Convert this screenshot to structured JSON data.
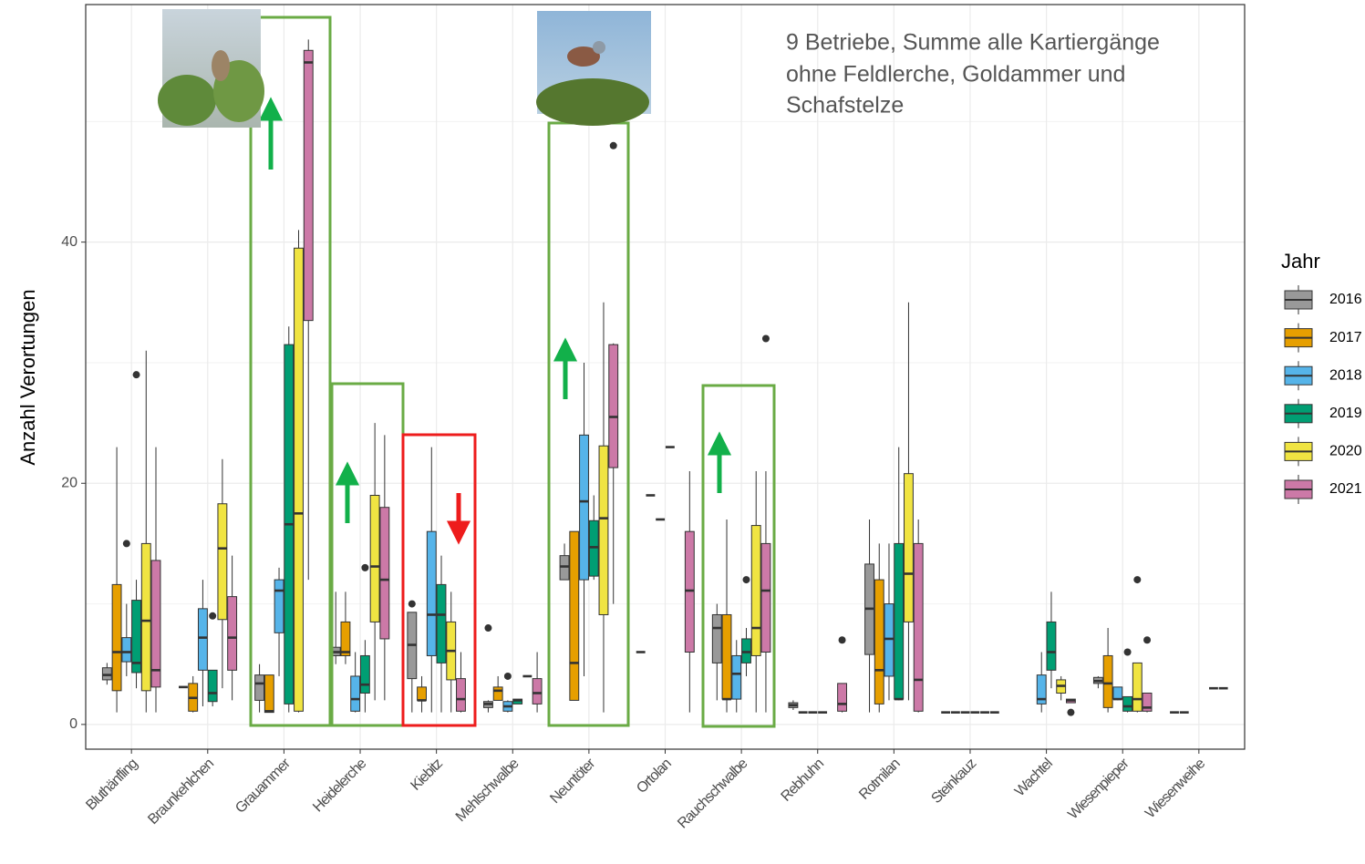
{
  "chart_data": {
    "type": "box",
    "y_label": "Anzahl Verortungen",
    "annotation": [
      "9 Betriebe, Summe alle Kartiergänge",
      "ohne Feldlerche, Goldammer und",
      "Schafstelze"
    ],
    "legend_title": "Jahr",
    "categories": [
      "Bluthänfling",
      "Braunkehlchen",
      "Grauammer",
      "Heidelerche",
      "Kiebitz",
      "Mehlschwalbe",
      "Neuntöter",
      "Ortolan",
      "Rauchschwalbe",
      "Rebhuhn",
      "Rotmilan",
      "Steinkauz",
      "Wachtel",
      "Wiesenpieper",
      "Wiesenweihe"
    ],
    "ylim": [
      -2.05,
      59.7
    ],
    "yticks": [
      0,
      20,
      40
    ],
    "minor_grid": [
      10,
      30,
      50
    ],
    "grid": true,
    "series": [
      {
        "name": "2016",
        "color": "#999999",
        "values": [
          {
            "min": 3.3,
            "q1": 3.7,
            "median": 4.1,
            "q3": 4.7,
            "max": 5.1,
            "outliers": []
          },
          {
            "min": 3.1,
            "q1": 3.1,
            "median": 3.1,
            "q3": 3.1,
            "max": 3.1,
            "outliers": []
          },
          {
            "min": 1,
            "q1": 2,
            "median": 3.4,
            "q3": 4.1,
            "max": 5,
            "outliers": []
          },
          {
            "min": 5,
            "q1": 5.7,
            "median": 6,
            "q3": 6.4,
            "max": 11,
            "outliers": []
          },
          {
            "min": 1,
            "q1": 3.8,
            "median": 6.6,
            "q3": 9.3,
            "max": 9.3,
            "outliers": [
              10
            ]
          },
          {
            "min": 1,
            "q1": 1.4,
            "median": 1.7,
            "q3": 1.9,
            "max": 2,
            "outliers": [
              8
            ]
          },
          {
            "min": 12,
            "q1": 12,
            "median": 13.1,
            "q3": 14,
            "max": 15,
            "outliers": []
          },
          {
            "min": 6,
            "q1": 6,
            "median": 6,
            "q3": 6,
            "max": 6,
            "outliers": []
          },
          {
            "min": 2,
            "q1": 5.1,
            "median": 8,
            "q3": 9.1,
            "max": 10,
            "outliers": []
          },
          {
            "min": 1.2,
            "q1": 1.4,
            "median": 1.6,
            "q3": 1.8,
            "max": 2,
            "outliers": []
          },
          {
            "min": 1,
            "q1": 5.8,
            "median": 9.6,
            "q3": 13.3,
            "max": 17,
            "outliers": []
          },
          {
            "min": 1,
            "q1": 1,
            "median": 1,
            "q3": 1,
            "max": 1,
            "outliers": []
          },
          null,
          {
            "min": 3,
            "q1": 3.4,
            "median": 3.6,
            "q3": 3.9,
            "max": 4,
            "outliers": []
          },
          {
            "min": 1,
            "q1": 1,
            "median": 1,
            "q3": 1,
            "max": 1,
            "outliers": []
          }
        ]
      },
      {
        "name": "2017",
        "color": "#E69F00",
        "values": [
          {
            "min": 1,
            "q1": 2.8,
            "median": 6,
            "q3": 11.6,
            "max": 23,
            "outliers": []
          },
          {
            "min": 1,
            "q1": 1.1,
            "median": 2.2,
            "q3": 3.4,
            "max": 4,
            "outliers": []
          },
          {
            "min": 1,
            "q1": 1,
            "median": 1.1,
            "q3": 4.1,
            "max": 4.1,
            "outliers": []
          },
          {
            "min": 5,
            "q1": 5.7,
            "median": 6,
            "q3": 8.5,
            "max": 11,
            "outliers": []
          },
          {
            "min": 1,
            "q1": 2,
            "median": 2,
            "q3": 3.1,
            "max": 4,
            "outliers": []
          },
          {
            "min": 2,
            "q1": 2,
            "median": 2.8,
            "q3": 3.1,
            "max": 4,
            "outliers": []
          },
          {
            "min": 2,
            "q1": 2,
            "median": 5.1,
            "q3": 16,
            "max": 16,
            "outliers": []
          },
          {
            "min": 19,
            "q1": 19,
            "median": 19,
            "q3": 19,
            "max": 19,
            "outliers": []
          },
          {
            "min": 1,
            "q1": 2.1,
            "median": 2.1,
            "q3": 9.1,
            "max": 17,
            "outliers": []
          },
          {
            "min": 1,
            "q1": 1,
            "median": 1,
            "q3": 1,
            "max": 1,
            "outliers": []
          },
          {
            "min": 1,
            "q1": 1.7,
            "median": 4.5,
            "q3": 12,
            "max": 15,
            "outliers": []
          },
          {
            "min": 1,
            "q1": 1,
            "median": 1,
            "q3": 1,
            "max": 1,
            "outliers": []
          },
          null,
          {
            "min": 1,
            "q1": 1.4,
            "median": 3.4,
            "q3": 5.7,
            "max": 8,
            "outliers": []
          },
          {
            "min": 1,
            "q1": 1,
            "median": 1,
            "q3": 1,
            "max": 1,
            "outliers": []
          }
        ]
      },
      {
        "name": "2018",
        "color": "#56B4E9",
        "values": [
          {
            "min": 4,
            "q1": 5.2,
            "median": 6,
            "q3": 7.2,
            "max": 10,
            "outliers": [
              15
            ]
          },
          {
            "min": 1.5,
            "q1": 4.5,
            "median": 7.2,
            "q3": 9.6,
            "max": 12,
            "outliers": []
          },
          {
            "min": 4,
            "q1": 7.6,
            "median": 11.1,
            "q3": 12,
            "max": 13,
            "outliers": []
          },
          {
            "min": 1,
            "q1": 1.1,
            "median": 2.1,
            "q3": 4,
            "max": 6,
            "outliers": []
          },
          {
            "min": 1,
            "q1": 5.7,
            "median": 9.1,
            "q3": 16,
            "max": 23,
            "outliers": []
          },
          {
            "min": 1,
            "q1": 1.1,
            "median": 1.5,
            "q3": 1.9,
            "max": 2,
            "outliers": [
              4
            ]
          },
          {
            "min": 4,
            "q1": 12,
            "median": 18.5,
            "q3": 24,
            "max": 30,
            "outliers": []
          },
          {
            "min": 17,
            "q1": 17,
            "median": 17,
            "q3": 17,
            "max": 17,
            "outliers": []
          },
          {
            "min": 1,
            "q1": 2.1,
            "median": 4.2,
            "q3": 5.7,
            "max": 7,
            "outliers": []
          },
          {
            "min": 1,
            "q1": 1,
            "median": 1,
            "q3": 1,
            "max": 1,
            "outliers": []
          },
          {
            "min": 2,
            "q1": 4,
            "median": 7.1,
            "q3": 10,
            "max": 15,
            "outliers": []
          },
          {
            "min": 1,
            "q1": 1,
            "median": 1,
            "q3": 1,
            "max": 1,
            "outliers": []
          },
          {
            "min": 1,
            "q1": 1.7,
            "median": 2.1,
            "q3": 4.1,
            "max": 6,
            "outliers": []
          },
          {
            "min": 2,
            "q1": 2.1,
            "median": 2.1,
            "q3": 3.1,
            "max": 3.1,
            "outliers": []
          },
          null
        ]
      },
      {
        "name": "2019",
        "color": "#009E73",
        "values": [
          {
            "min": 3,
            "q1": 4.3,
            "median": 5.1,
            "q3": 10.3,
            "max": 12,
            "outliers": [
              29
            ]
          },
          {
            "min": 1.5,
            "q1": 1.9,
            "median": 2.6,
            "q3": 4.5,
            "max": 4.5,
            "outliers": [
              9
            ]
          },
          {
            "min": 1,
            "q1": 1.7,
            "median": 16.6,
            "q3": 31.5,
            "max": 33,
            "outliers": []
          },
          {
            "min": 1,
            "q1": 2.6,
            "median": 3.3,
            "q3": 5.7,
            "max": 7,
            "outliers": [
              13
            ]
          },
          {
            "min": 1,
            "q1": 5.1,
            "median": 9.1,
            "q3": 11.6,
            "max": 14,
            "outliers": []
          },
          {
            "min": 1.7,
            "q1": 1.7,
            "median": 2,
            "q3": 2.1,
            "max": 2.1,
            "outliers": []
          },
          {
            "min": 12,
            "q1": 12.3,
            "median": 14.7,
            "q3": 16.9,
            "max": 19,
            "outliers": []
          },
          {
            "min": 23,
            "q1": 23,
            "median": 23,
            "q3": 23,
            "max": 23,
            "outliers": []
          },
          {
            "min": 4,
            "q1": 5.1,
            "median": 6,
            "q3": 7.1,
            "max": 8,
            "outliers": [
              12
            ]
          },
          {
            "min": 1,
            "q1": 1,
            "median": 1,
            "q3": 1,
            "max": 1,
            "outliers": []
          },
          {
            "min": 2,
            "q1": 2.1,
            "median": 2.1,
            "q3": 15,
            "max": 23,
            "outliers": []
          },
          {
            "min": 1,
            "q1": 1,
            "median": 1,
            "q3": 1,
            "max": 1,
            "outliers": []
          },
          {
            "min": 3,
            "q1": 4.5,
            "median": 6,
            "q3": 8.5,
            "max": 11,
            "outliers": []
          },
          {
            "min": 1,
            "q1": 1.1,
            "median": 1.5,
            "q3": 2.3,
            "max": 2.3,
            "outliers": [
              6
            ]
          },
          null
        ]
      },
      {
        "name": "2020",
        "color": "#F0E442",
        "values": [
          {
            "min": 1,
            "q1": 2.8,
            "median": 8.6,
            "q3": 15,
            "max": 31,
            "outliers": []
          },
          {
            "min": 3,
            "q1": 8.7,
            "median": 14.6,
            "q3": 18.3,
            "max": 22,
            "outliers": []
          },
          {
            "min": 1,
            "q1": 1.1,
            "median": 17.5,
            "q3": 39.5,
            "max": 41,
            "outliers": []
          },
          {
            "min": 2,
            "q1": 8.5,
            "median": 13.1,
            "q3": 19,
            "max": 25,
            "outliers": []
          },
          {
            "min": 1,
            "q1": 3.7,
            "median": 6.1,
            "q3": 8.5,
            "max": 11,
            "outliers": []
          },
          {
            "min": 4,
            "q1": 4,
            "median": 4,
            "q3": 4,
            "max": 4,
            "outliers": []
          },
          {
            "min": 1,
            "q1": 9.1,
            "median": 17.1,
            "q3": 23.1,
            "max": 35,
            "outliers": []
          },
          null,
          {
            "min": 1,
            "q1": 5.7,
            "median": 8,
            "q3": 16.5,
            "max": 21,
            "outliers": []
          },
          null,
          {
            "min": 2,
            "q1": 8.5,
            "median": 12.5,
            "q3": 20.8,
            "max": 35,
            "outliers": []
          },
          {
            "min": 1,
            "q1": 1,
            "median": 1,
            "q3": 1,
            "max": 1,
            "outliers": []
          },
          {
            "min": 2,
            "q1": 2.6,
            "median": 3.2,
            "q3": 3.7,
            "max": 4,
            "outliers": []
          },
          {
            "min": 1,
            "q1": 1.1,
            "median": 2.1,
            "q3": 5.1,
            "max": 5.1,
            "outliers": [
              12
            ]
          },
          {
            "min": 3,
            "q1": 3,
            "median": 3,
            "q3": 3,
            "max": 3,
            "outliers": []
          }
        ]
      },
      {
        "name": "2021",
        "color": "#CC79A7",
        "values": [
          {
            "min": 1,
            "q1": 3.1,
            "median": 4.5,
            "q3": 13.6,
            "max": 23,
            "outliers": []
          },
          {
            "min": 2,
            "q1": 4.5,
            "median": 7.2,
            "q3": 10.6,
            "max": 14,
            "outliers": []
          },
          {
            "min": 12,
            "q1": 33.5,
            "median": 54.9,
            "q3": 55.9,
            "max": 56.8,
            "outliers": []
          },
          {
            "min": 2,
            "q1": 7.1,
            "median": 12,
            "q3": 18,
            "max": 24,
            "outliers": []
          },
          {
            "min": 1,
            "q1": 1.1,
            "median": 2.1,
            "q3": 3.8,
            "max": 6,
            "outliers": []
          },
          {
            "min": 1,
            "q1": 1.7,
            "median": 2.6,
            "q3": 3.8,
            "max": 6,
            "outliers": []
          },
          {
            "min": 10,
            "q1": 21.3,
            "median": 25.5,
            "q3": 31.5,
            "max": 31.6,
            "outliers": [
              48
            ]
          },
          {
            "min": 1,
            "q1": 6,
            "median": 11.1,
            "q3": 16,
            "max": 21,
            "outliers": []
          },
          {
            "min": 1,
            "q1": 6,
            "median": 11.1,
            "q3": 15,
            "max": 21,
            "outliers": [
              32
            ]
          },
          {
            "min": 1,
            "q1": 1.1,
            "median": 1.7,
            "q3": 3.4,
            "max": 3.4,
            "outliers": [
              7
            ]
          },
          {
            "min": 1,
            "q1": 1.1,
            "median": 3.7,
            "q3": 15,
            "max": 17,
            "outliers": []
          },
          {
            "min": 1,
            "q1": 1,
            "median": 1,
            "q3": 1,
            "max": 1,
            "outliers": []
          },
          {
            "min": 1.8,
            "q1": 1.8,
            "median": 2,
            "q3": 2.1,
            "max": 2.1,
            "outliers": [
              1
            ]
          },
          {
            "min": 1,
            "q1": 1.1,
            "median": 1.4,
            "q3": 2.6,
            "max": 2.6,
            "outliers": [
              7
            ]
          },
          {
            "min": 3,
            "q1": 3,
            "median": 3,
            "q3": 3,
            "max": 3,
            "outliers": []
          }
        ]
      }
    ]
  }
}
